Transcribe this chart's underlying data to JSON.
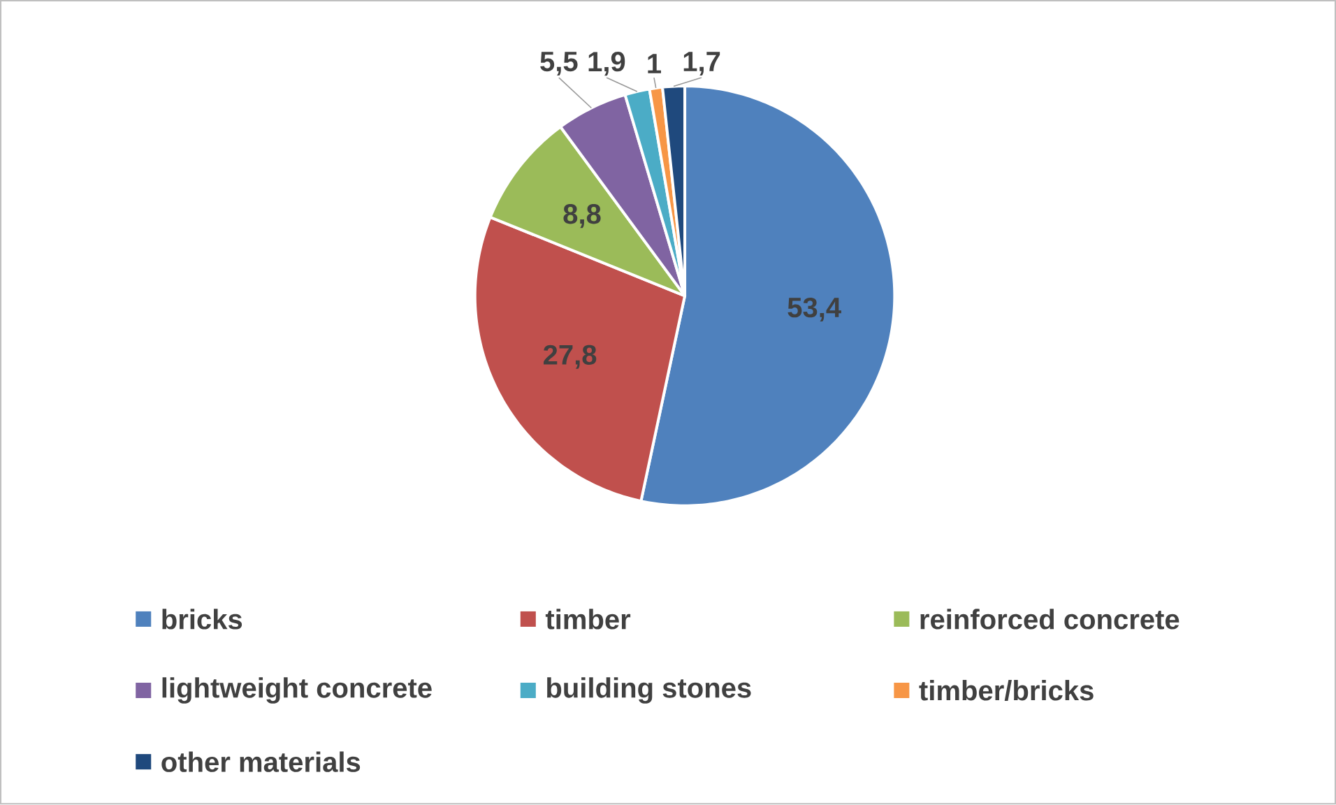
{
  "chart_data": {
    "type": "pie",
    "categories": [
      "bricks",
      "timber",
      "reinforced concrete",
      "lightweight concrete",
      "building stones",
      "timber/bricks",
      "other materials"
    ],
    "values": [
      53.4,
      27.8,
      8.8,
      5.5,
      1.9,
      1,
      1.7
    ],
    "value_labels": [
      "53,4",
      "27,8",
      "8,8",
      "5,5",
      "1,9",
      "1",
      "1,7"
    ],
    "colors": [
      "#4f81bd",
      "#c0504d",
      "#9bbb59",
      "#8064a2",
      "#4bacc6",
      "#f79646",
      "#1f497d"
    ],
    "legend": "bottom"
  }
}
